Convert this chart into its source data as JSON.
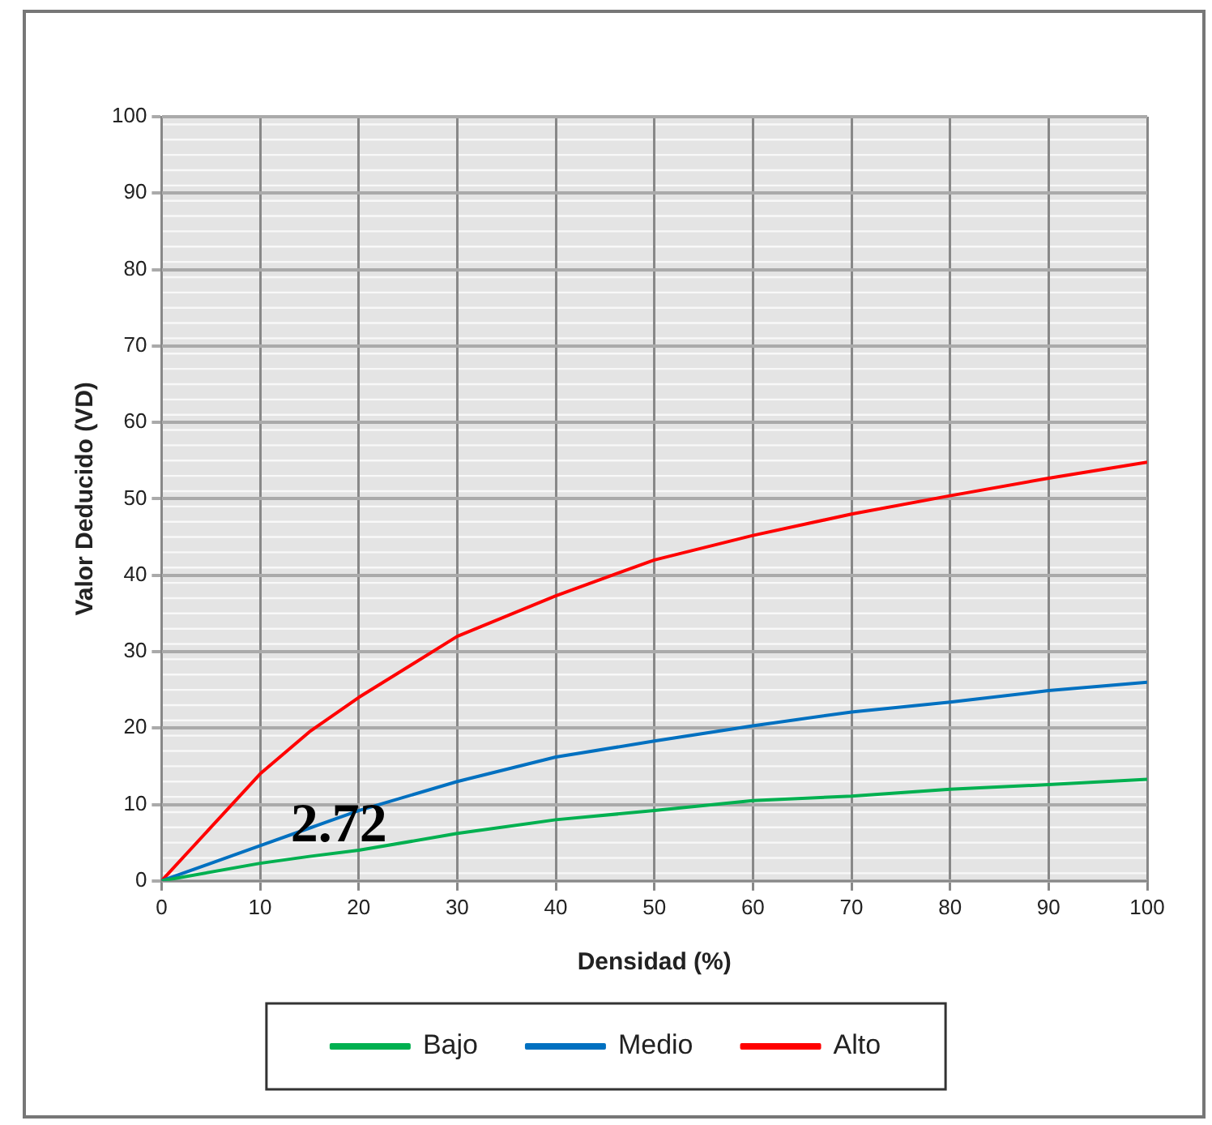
{
  "chart_data": {
    "type": "line",
    "xlabel": "Densidad (%)",
    "ylabel": "Valor Deducido (VD)",
    "x": [
      0,
      10,
      15,
      20,
      30,
      40,
      50,
      60,
      70,
      80,
      90,
      100
    ],
    "series": [
      {
        "name": "Bajo",
        "color": "#00b050",
        "values": [
          0,
          2.3,
          3.2,
          4,
          6.2,
          8,
          9.2,
          10.5,
          11.1,
          12,
          12.6,
          13.3
        ]
      },
      {
        "name": "Medio",
        "color": "#0070c0",
        "values": [
          0,
          4.6,
          6.9,
          9.2,
          13,
          16.2,
          18.3,
          20.3,
          22.1,
          23.4,
          24.9,
          26
        ]
      },
      {
        "name": "Alto",
        "color": "#ff0000",
        "values": [
          0,
          14,
          19.5,
          24,
          32,
          37.3,
          42,
          45.2,
          48,
          50.4,
          52.7,
          54.8
        ]
      }
    ],
    "xlim": [
      0,
      100
    ],
    "xticks": [
      0,
      10,
      20,
      30,
      40,
      50,
      60,
      70,
      80,
      90,
      100
    ],
    "ylim": [
      0,
      100
    ],
    "yticks": [
      0,
      10,
      20,
      30,
      40,
      50,
      60,
      70,
      80,
      90,
      100
    ],
    "grid": true,
    "legend": "bottom",
    "marker": "none",
    "line_style": "solid",
    "annotations": [
      {
        "text": "2.72",
        "x": 18,
        "y": 7
      }
    ]
  }
}
